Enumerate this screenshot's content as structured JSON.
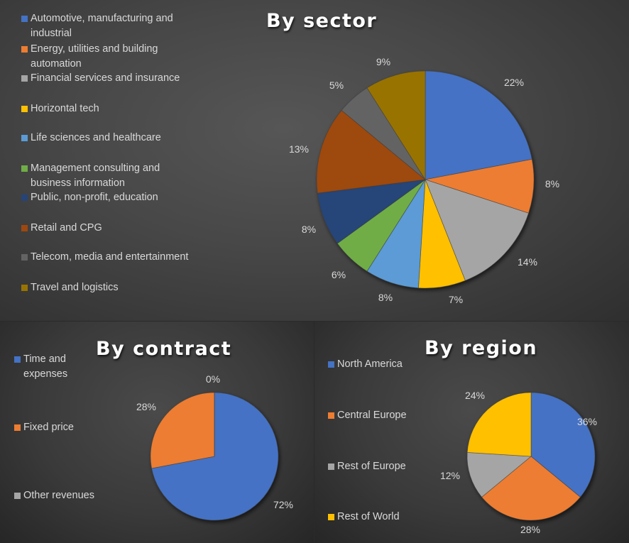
{
  "chart_data": [
    {
      "type": "pie",
      "title": "By sector",
      "categories": [
        "Automotive, manufacturing and industrial",
        "Energy, utilities and building automation",
        "Financial services and insurance",
        "Horizontal tech",
        "Life sciences and healthcare",
        "Management consulting and business information",
        "Public, non-profit, education",
        "Retail and CPG",
        "Telecom, media and entertainment",
        "Travel and logistics"
      ],
      "values": [
        22,
        8,
        14,
        7,
        8,
        6,
        8,
        13,
        5,
        9
      ],
      "labels": [
        "22%",
        "8%",
        "14%",
        "7%",
        "8%",
        "6%",
        "8%",
        "13%",
        "5%",
        "9%"
      ],
      "colors": [
        "#4472c4",
        "#ed7d31",
        "#a5a5a5",
        "#ffc000",
        "#5b9bd5",
        "#70ad47",
        "#264478",
        "#9e480e",
        "#636363",
        "#997300"
      ],
      "legend_position": "left"
    },
    {
      "type": "pie",
      "title": "By contract",
      "categories": [
        "Time and expenses",
        "Fixed price",
        "Other revenues"
      ],
      "values": [
        72,
        28,
        0
      ],
      "labels": [
        "72%",
        "28%",
        "0%"
      ],
      "colors": [
        "#4472c4",
        "#ed7d31",
        "#a5a5a5"
      ],
      "legend_position": "left"
    },
    {
      "type": "pie",
      "title": "By region",
      "categories": [
        "North America",
        "Central Europe",
        "Rest of Europe",
        "Rest of World"
      ],
      "values": [
        36,
        28,
        12,
        24
      ],
      "labels": [
        "36%",
        "28%",
        "12%",
        "24%"
      ],
      "colors": [
        "#4472c4",
        "#ed7d31",
        "#a5a5a5",
        "#ffc000"
      ],
      "legend_position": "left"
    }
  ],
  "sector": {
    "title": "By sector",
    "legend": [
      {
        "line1": "Automotive, manufacturing and",
        "line2": "industrial"
      },
      {
        "line1": "Energy, utilities and building",
        "line2": "automation"
      },
      {
        "line1": "Financial services and insurance",
        "line2": ""
      },
      {
        "line1": "Horizontal tech",
        "line2": ""
      },
      {
        "line1": "Life sciences and healthcare",
        "line2": ""
      },
      {
        "line1": "Management consulting and",
        "line2": "business information"
      },
      {
        "line1": "Public, non-profit, education",
        "line2": ""
      },
      {
        "line1": "Retail and CPG",
        "line2": ""
      },
      {
        "line1": "Telecom, media and entertainment",
        "line2": ""
      },
      {
        "line1": "Travel and logistics",
        "line2": ""
      }
    ],
    "labels": [
      "22%",
      "8%",
      "14%",
      "7%",
      "8%",
      "6%",
      "8%",
      "13%",
      "5%",
      "9%"
    ]
  },
  "contract": {
    "title": "By contract",
    "legend": [
      {
        "line1": "Time and",
        "line2": "expenses"
      },
      {
        "line1": "Fixed price",
        "line2": ""
      },
      {
        "line1": "Other revenues",
        "line2": ""
      }
    ],
    "labels": [
      "72%",
      "28%",
      "0%"
    ]
  },
  "region": {
    "title": "By region",
    "legend": [
      {
        "line1": "North America"
      },
      {
        "line1": "Central Europe"
      },
      {
        "line1": "Rest of Europe"
      },
      {
        "line1": "Rest of World"
      }
    ],
    "labels": [
      "36%",
      "28%",
      "12%",
      "24%"
    ]
  }
}
